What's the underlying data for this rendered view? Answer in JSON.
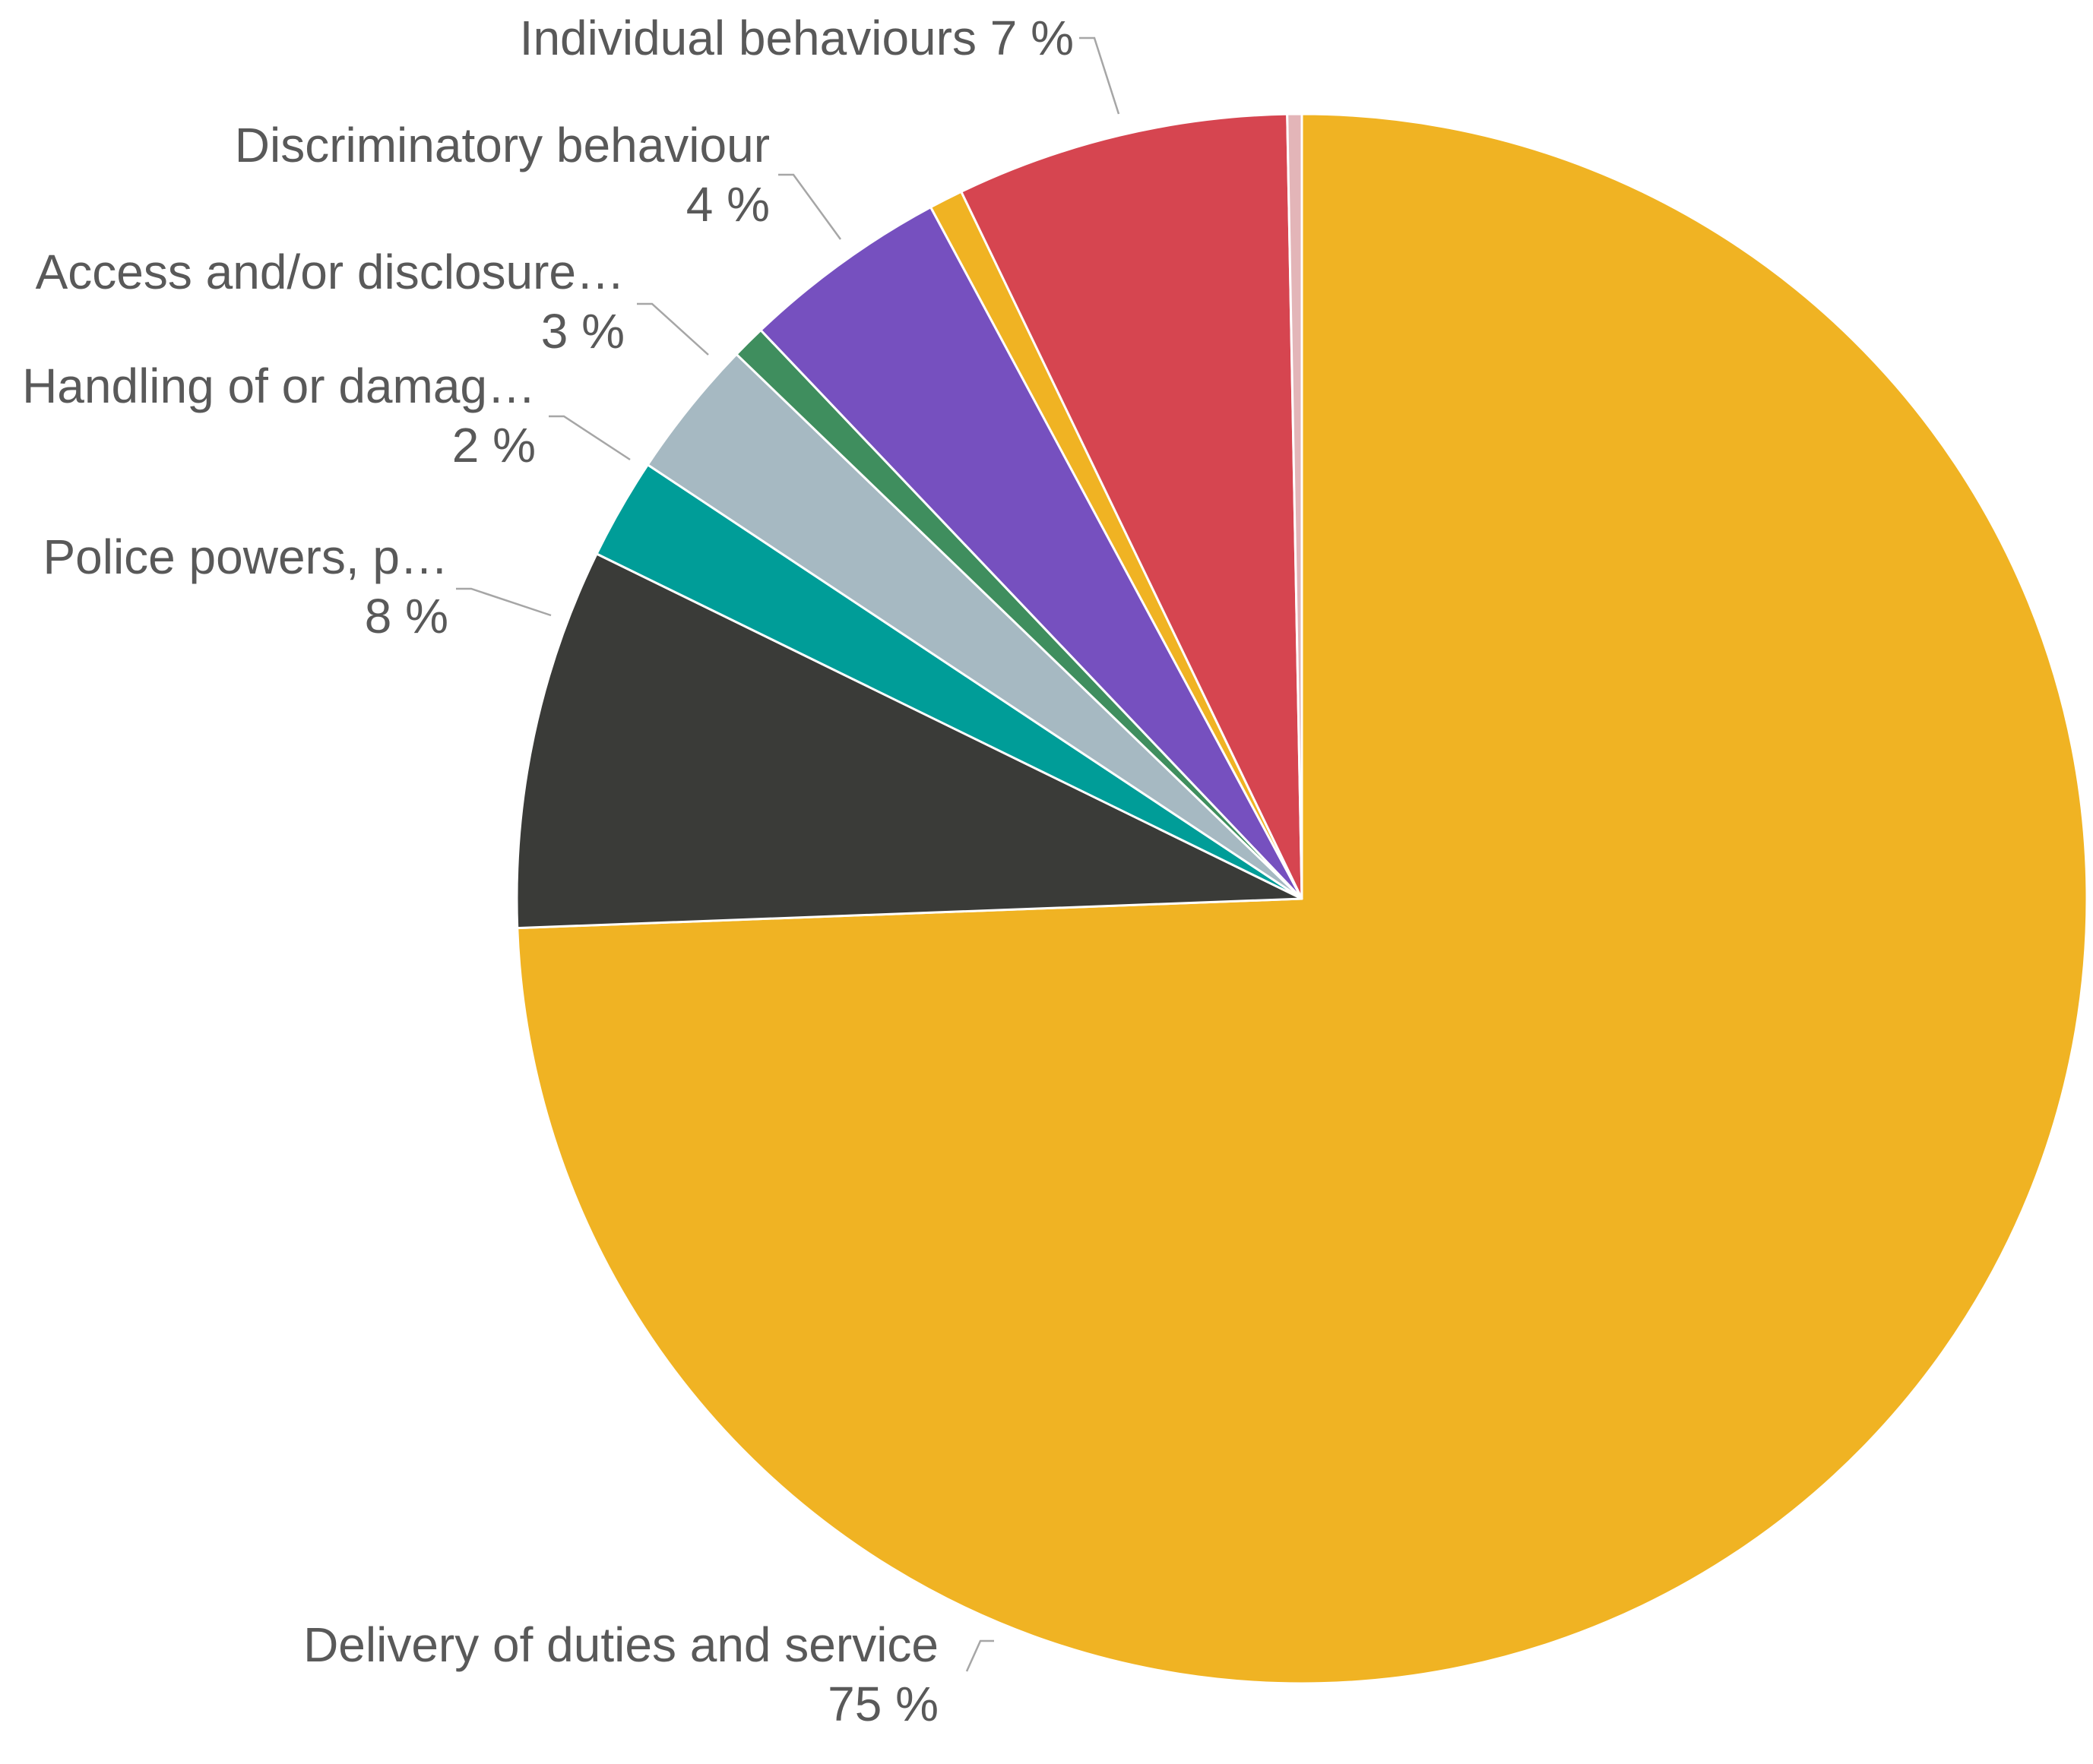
{
  "chart_data": {
    "type": "pie",
    "start_angle_deg": 0,
    "direction": "clockwise",
    "slices": [
      {
        "label": "Delivery of duties and service",
        "value_label": "75 %",
        "value": 75.0,
        "color": "#F0B323",
        "show_label": true
      },
      {
        "label": "Police powers, p…",
        "value_label": "8 %",
        "value": 7.9,
        "color": "#3A3B38",
        "show_label": true
      },
      {
        "label": "Handling of or damag…",
        "value_label": "2 %",
        "value": 2.1,
        "color": "#009D98",
        "show_label": true
      },
      {
        "label": "Access and/or disclosure…",
        "value_label": "3 %",
        "value": 2.9,
        "color": "#A6B9C2",
        "show_label": true
      },
      {
        "label": "",
        "value_label": "",
        "value": 0.7,
        "color": "#3F8E5E",
        "show_label": false
      },
      {
        "label": "Discriminatory behaviour",
        "value_label": "4 %",
        "value": 4.3,
        "color": "#7650BF",
        "show_label": true
      },
      {
        "label": "",
        "value_label": "",
        "value": 0.7,
        "color": "#F0B323",
        "show_label": false
      },
      {
        "label": "Individual behaviours",
        "value_label": "7 %",
        "value": 6.9,
        "color": "#D64550",
        "show_label": true
      },
      {
        "label": "",
        "value_label": "",
        "value": 0.3,
        "color": "#E3B5B8",
        "show_label": false
      }
    ]
  }
}
